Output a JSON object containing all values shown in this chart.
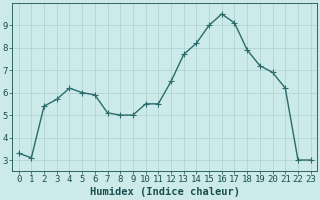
{
  "x": [
    0,
    1,
    2,
    3,
    4,
    5,
    6,
    7,
    8,
    9,
    10,
    11,
    12,
    13,
    14,
    15,
    16,
    17,
    18,
    19,
    20,
    21,
    22,
    23
  ],
  "y": [
    3.3,
    3.1,
    5.4,
    5.7,
    6.2,
    6.0,
    5.9,
    5.1,
    5.0,
    5.0,
    5.5,
    5.5,
    6.5,
    7.7,
    8.2,
    9.0,
    9.5,
    9.1,
    7.9,
    7.2,
    6.9,
    6.2,
    3.0,
    3.0
  ],
  "xlabel": "Humidex (Indice chaleur)",
  "xlim": [
    -0.5,
    23.5
  ],
  "ylim": [
    2.5,
    10.0
  ],
  "yticks": [
    3,
    4,
    5,
    6,
    7,
    8,
    9
  ],
  "xticks": [
    0,
    1,
    2,
    3,
    4,
    5,
    6,
    7,
    8,
    9,
    10,
    11,
    12,
    13,
    14,
    15,
    16,
    17,
    18,
    19,
    20,
    21,
    22,
    23
  ],
  "line_color": "#2a6b6b",
  "bg_color": "#cdeaea",
  "grid_color": "#aecece",
  "tick_label_color": "#1a4f4f",
  "xlabel_color": "#1a4f4f",
  "xlabel_fontsize": 7.5,
  "tick_fontsize": 6.5,
  "line_width": 1.0,
  "marker_size": 4
}
